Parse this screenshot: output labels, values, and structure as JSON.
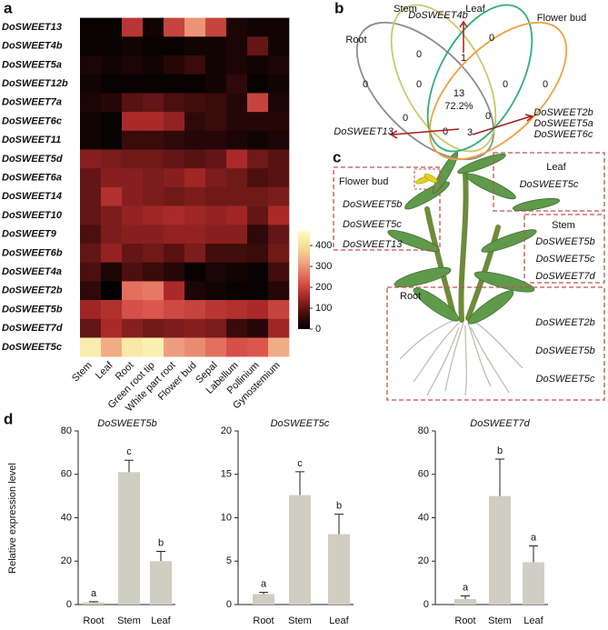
{
  "panels": [
    "a",
    "b",
    "c",
    "d"
  ],
  "chart_data": [
    {
      "type": "heatmap",
      "rows": [
        "DoSWEET13",
        "DoSWEET4b",
        "DoSWEET5a",
        "DoSWEET12b",
        "DoSWEET7a",
        "DoSWEET6c",
        "DoSWEET11",
        "DoSWEET5d",
        "DoSWEET6a",
        "DoSWEET14",
        "DoSWEET10",
        "DoSWEET9",
        "DoSWEET6b",
        "DoSWEET4a",
        "DoSWEET2b",
        "DoSWEET5b",
        "DoSWEET7d",
        "DoSWEET5c"
      ],
      "columns": [
        "Stem",
        "Leaf",
        "Root",
        "Green root tip",
        "White part root",
        "Flower bud",
        "Sepal",
        "Labellum",
        "Pollinium",
        "Gynostemium"
      ],
      "values": [
        [
          10,
          10,
          180,
          20,
          200,
          300,
          200,
          30,
          20,
          20
        ],
        [
          10,
          10,
          20,
          10,
          10,
          20,
          20,
          30,
          100,
          20
        ],
        [
          30,
          20,
          30,
          20,
          40,
          60,
          20,
          30,
          20,
          30
        ],
        [
          20,
          10,
          10,
          10,
          10,
          10,
          20,
          50,
          10,
          20
        ],
        [
          30,
          40,
          90,
          100,
          80,
          70,
          60,
          40,
          200,
          30
        ],
        [
          20,
          10,
          160,
          160,
          140,
          50,
          60,
          40,
          40,
          40
        ],
        [
          20,
          10,
          60,
          60,
          50,
          40,
          40,
          30,
          20,
          30
        ],
        [
          130,
          120,
          110,
          110,
          100,
          90,
          100,
          160,
          110,
          90
        ],
        [
          100,
          130,
          130,
          120,
          130,
          150,
          120,
          110,
          80,
          90
        ],
        [
          100,
          170,
          130,
          120,
          110,
          120,
          110,
          110,
          110,
          120
        ],
        [
          100,
          120,
          140,
          150,
          160,
          150,
          140,
          150,
          100,
          160
        ],
        [
          80,
          120,
          130,
          130,
          140,
          140,
          130,
          130,
          50,
          100
        ],
        [
          100,
          140,
          100,
          110,
          90,
          120,
          70,
          70,
          60,
          110
        ],
        [
          80,
          30,
          80,
          60,
          40,
          10,
          30,
          20,
          10,
          70
        ],
        [
          50,
          0,
          260,
          270,
          160,
          30,
          20,
          10,
          10,
          40
        ],
        [
          150,
          170,
          220,
          230,
          210,
          200,
          180,
          170,
          160,
          200
        ],
        [
          100,
          160,
          130,
          110,
          120,
          130,
          120,
          60,
          40,
          150
        ],
        [
          430,
          330,
          420,
          440,
          310,
          290,
          260,
          220,
          230,
          330
        ]
      ],
      "colorbar": {
        "lim": [
          0,
          470
        ],
        "ticks": [
          0,
          100,
          200,
          300,
          400
        ],
        "colors": [
          "#000000",
          "#4a0e0e",
          "#a82828",
          "#de5a50",
          "#eea080",
          "#f6dc98",
          "#fffcc0"
        ]
      }
    },
    {
      "type": "bar",
      "title": "DoSWEET5b",
      "ylabel": "Relative expression level",
      "categories": [
        "Root",
        "Stem",
        "Leaf"
      ],
      "values": [
        1,
        61,
        20
      ],
      "errors": [
        0.3,
        5.5,
        4.5
      ],
      "annotations": [
        "a",
        "c",
        "b"
      ],
      "color": "#d0cdc2",
      "ylim": [
        0,
        80
      ],
      "yticks": [
        0,
        20,
        40,
        60,
        80
      ]
    },
    {
      "type": "bar",
      "title": "DoSWEET5c",
      "categories": [
        "Root",
        "Stem",
        "Leaf"
      ],
      "values": [
        1.2,
        12.6,
        8.1
      ],
      "errors": [
        0.2,
        2.7,
        2.3
      ],
      "annotations": [
        "a",
        "c",
        "b"
      ],
      "color": "#d0cdc2",
      "ylim": [
        0,
        20
      ],
      "yticks": [
        0,
        5,
        10,
        15,
        20
      ]
    },
    {
      "type": "bar",
      "title": "DoSWEET7d",
      "categories": [
        "Root",
        "Stem",
        "Leaf"
      ],
      "values": [
        2.5,
        50,
        19.5
      ],
      "errors": [
        1.5,
        17,
        7.5
      ],
      "annotations": [
        "a",
        "b",
        "a"
      ],
      "color": "#d0cdc2",
      "ylim": [
        0,
        80
      ],
      "yticks": [
        0,
        20,
        40,
        60,
        80
      ]
    }
  ],
  "venn": {
    "sets": [
      {
        "name": "Root",
        "color": "#8c8c8c"
      },
      {
        "name": "Stem",
        "color": "#c9c96a"
      },
      {
        "name": "Leaf",
        "color": "#2fae7a"
      },
      {
        "name": "Flower bud",
        "color": "#f0a040"
      }
    ],
    "counts": [
      0,
      0,
      1,
      0,
      0,
      0,
      0,
      13,
      0,
      0,
      0,
      3
    ],
    "percent": "72.2%",
    "annotations": [
      {
        "lines": [
          "DoSWEET4b"
        ]
      },
      {
        "lines": [
          "DoSWEET13"
        ]
      },
      {
        "lines": [
          "DoSWEET2b",
          "DoSWEET5a",
          "DoSWEET6c"
        ]
      }
    ]
  },
  "plant": {
    "boxes": [
      {
        "title": "Flower bud",
        "genes": [
          "DoSWEET5b",
          "DoSWEET5c",
          "DoSWEET13"
        ]
      },
      {
        "title": "Leaf",
        "genes": [
          "DoSWEET5c"
        ]
      },
      {
        "title": "Stem",
        "genes": [
          "DoSWEET5b",
          "DoSWEET5c",
          "DoSWEET7d"
        ]
      },
      {
        "title": "Root",
        "genes": [
          "DoSWEET2b",
          "DoSWEET5b",
          "DoSWEET5c"
        ]
      }
    ]
  }
}
